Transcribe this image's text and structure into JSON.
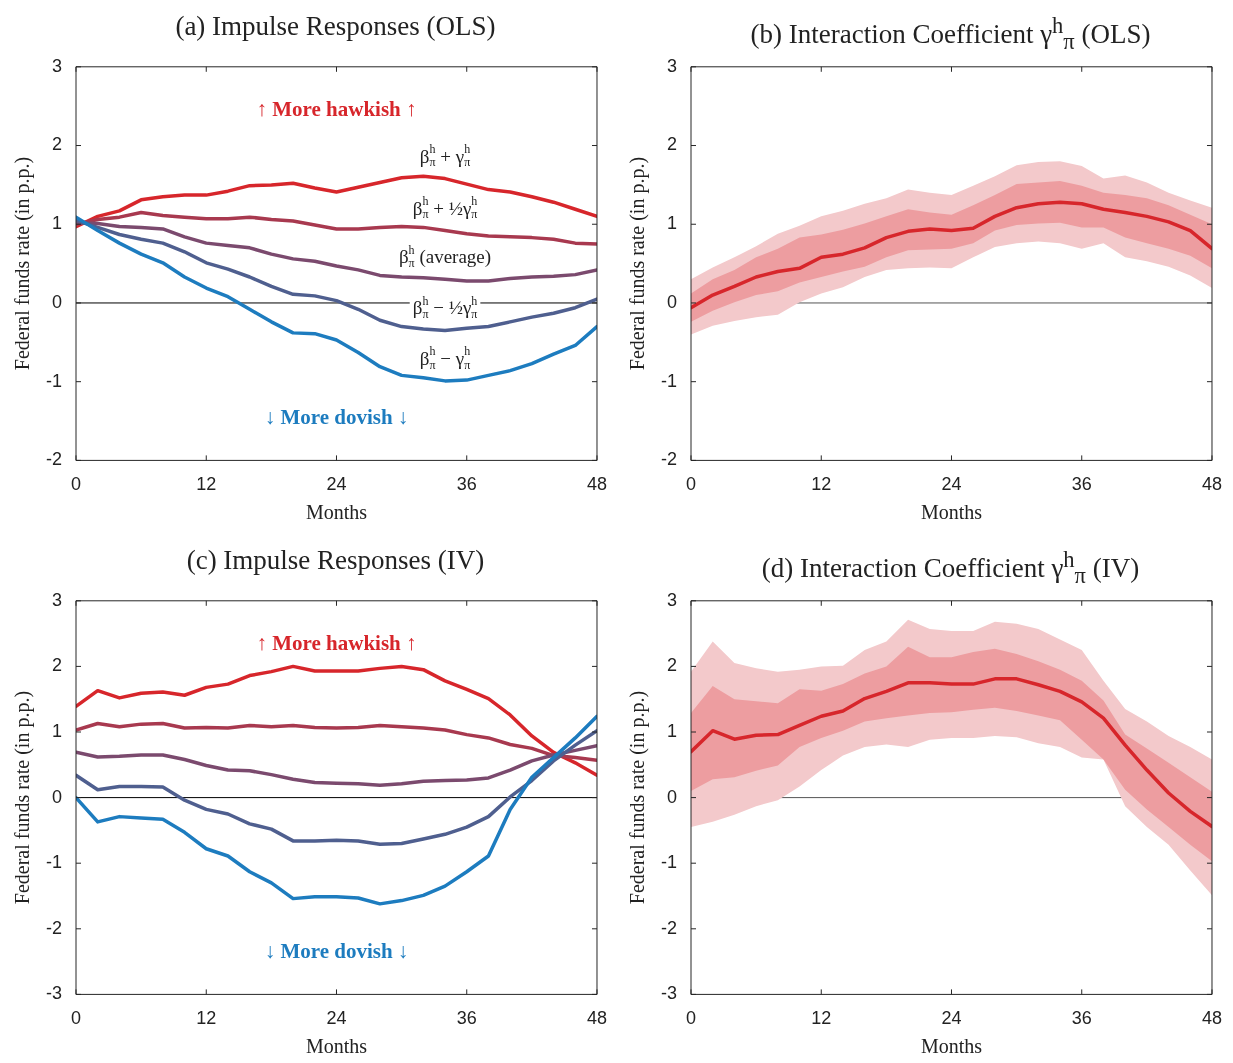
{
  "chart_data": [
    {
      "type": "line",
      "title": "(a) Impulse Responses (OLS)",
      "xlabel": "Months",
      "ylabel": "Federal funds rate (in p.p.)",
      "xlim": [
        0,
        48
      ],
      "xticks": [
        0,
        12,
        24,
        36,
        48
      ],
      "ylim": [
        -2,
        3
      ],
      "yticks": [
        -2,
        -1,
        0,
        1,
        2,
        3
      ],
      "ref_lines": [
        {
          "axis": "y",
          "value": 0,
          "color": "#000000"
        }
      ],
      "annotations": [
        "↑ More hawkish ↑",
        "↓ More dovish ↓"
      ],
      "series": [
        {
          "name": "β$^{h}$$_{π}$ + γ$^{h}$$_{π}$",
          "color": "#d7262b",
          "x": [
            0,
            2,
            4,
            6,
            8,
            10,
            12,
            14,
            16,
            18,
            20,
            22,
            24,
            26,
            28,
            30,
            32,
            34,
            36,
            38,
            40,
            42,
            44,
            46,
            48
          ],
          "values": [
            0.97,
            1.1,
            1.17,
            1.31,
            1.35,
            1.37,
            1.37,
            1.42,
            1.49,
            1.5,
            1.52,
            1.46,
            1.41,
            1.47,
            1.53,
            1.59,
            1.61,
            1.58,
            1.51,
            1.44,
            1.41,
            1.35,
            1.28,
            1.19,
            1.1
          ]
        },
        {
          "name": "β$^{h}$$_{π}$ + ½γ$^{h}$$_{π}$",
          "color": "#a8394f",
          "x": [
            0,
            2,
            4,
            6,
            8,
            10,
            12,
            14,
            16,
            18,
            20,
            22,
            24,
            26,
            28,
            30,
            32,
            34,
            36,
            38,
            40,
            42,
            44,
            46,
            48
          ],
          "values": [
            1.0,
            1.06,
            1.09,
            1.15,
            1.11,
            1.09,
            1.07,
            1.07,
            1.09,
            1.06,
            1.04,
            0.99,
            0.94,
            0.94,
            0.96,
            0.97,
            0.96,
            0.92,
            0.88,
            0.85,
            0.84,
            0.83,
            0.81,
            0.76,
            0.75
          ]
        },
        {
          "name": "β$^{h}$$_{π}$ (average)",
          "color": "#7b4a6e",
          "x": [
            0,
            2,
            4,
            6,
            8,
            10,
            12,
            14,
            16,
            18,
            20,
            22,
            24,
            26,
            28,
            30,
            32,
            34,
            36,
            38,
            40,
            42,
            44,
            46,
            48
          ],
          "values": [
            1.02,
            1.01,
            0.97,
            0.96,
            0.94,
            0.84,
            0.76,
            0.73,
            0.7,
            0.62,
            0.56,
            0.53,
            0.47,
            0.42,
            0.35,
            0.33,
            0.32,
            0.3,
            0.28,
            0.28,
            0.31,
            0.33,
            0.34,
            0.36,
            0.42
          ]
        },
        {
          "name": "β$^{h}$$_{π}$ − ½γ$^{h}$$_{π}$",
          "color": "#4f5f8f",
          "x": [
            0,
            2,
            4,
            6,
            8,
            10,
            12,
            14,
            16,
            18,
            20,
            22,
            24,
            26,
            28,
            30,
            32,
            34,
            36,
            38,
            40,
            42,
            44,
            46,
            48
          ],
          "values": [
            1.05,
            0.96,
            0.87,
            0.81,
            0.76,
            0.65,
            0.51,
            0.43,
            0.33,
            0.21,
            0.11,
            0.09,
            0.03,
            -0.08,
            -0.22,
            -0.3,
            -0.33,
            -0.35,
            -0.32,
            -0.3,
            -0.24,
            -0.18,
            -0.13,
            -0.06,
            0.05
          ]
        },
        {
          "name": "β$^{h}$$_{π}$ − γ$^{h}$$_{π}$",
          "color": "#1d7cbf",
          "x": [
            0,
            2,
            4,
            6,
            8,
            10,
            12,
            14,
            16,
            18,
            20,
            22,
            24,
            26,
            28,
            30,
            32,
            34,
            36,
            38,
            40,
            42,
            44,
            46,
            48
          ],
          "values": [
            1.09,
            0.92,
            0.76,
            0.62,
            0.51,
            0.33,
            0.19,
            0.08,
            -0.08,
            -0.24,
            -0.38,
            -0.39,
            -0.47,
            -0.63,
            -0.81,
            -0.92,
            -0.95,
            -0.99,
            -0.98,
            -0.92,
            -0.86,
            -0.77,
            -0.65,
            -0.54,
            -0.3
          ]
        }
      ]
    },
    {
      "type": "line",
      "title": "(b) Interaction Coefficient γ$^{h}$$_{π}$ (OLS)",
      "xlabel": "Months",
      "ylabel": "Federal funds rate (in p.p.)",
      "xlim": [
        0,
        48
      ],
      "xticks": [
        0,
        12,
        24,
        36,
        48
      ],
      "ylim": [
        -2,
        3
      ],
      "yticks": [
        -2,
        -1,
        0,
        1,
        2,
        3
      ],
      "ref_lines": [
        {
          "axis": "y",
          "value": 0,
          "color": "#555555"
        }
      ],
      "series": [
        {
          "color": "#f3c9cb",
          "x": [
            0,
            2,
            4,
            6,
            8,
            10,
            12,
            14,
            16,
            18,
            20,
            22,
            24,
            26,
            28,
            30,
            32,
            34,
            36,
            38,
            40,
            42,
            44,
            46,
            48
          ],
          "values": [
            null,
            null,
            null,
            null,
            null,
            null,
            null,
            null,
            null,
            null,
            null,
            null,
            null,
            null,
            null,
            null,
            null,
            null,
            null,
            null,
            null,
            null,
            null,
            null,
            null
          ],
          "lower": [
            -0.4,
            -0.29,
            -0.23,
            -0.18,
            -0.15,
            0.01,
            0.12,
            0.2,
            0.33,
            0.42,
            0.44,
            0.45,
            0.44,
            0.58,
            0.71,
            0.76,
            0.78,
            0.76,
            0.69,
            0.76,
            0.58,
            0.53,
            0.46,
            0.35,
            0.19
          ],
          "upper": [
            0.3,
            0.45,
            0.58,
            0.72,
            0.88,
            0.98,
            1.1,
            1.17,
            1.26,
            1.33,
            1.44,
            1.4,
            1.37,
            1.49,
            1.61,
            1.75,
            1.79,
            1.8,
            1.74,
            1.58,
            1.62,
            1.53,
            1.4,
            1.3,
            1.21
          ]
        },
        {
          "color": "#d7262b",
          "x": [
            0,
            2,
            4,
            6,
            8,
            10,
            12,
            14,
            16,
            18,
            20,
            22,
            24,
            26,
            28,
            30,
            32,
            34,
            36,
            38,
            40,
            42,
            44,
            46,
            48
          ],
          "values": [
            -0.06,
            0.1,
            0.21,
            0.33,
            0.4,
            0.44,
            0.58,
            0.62,
            0.7,
            0.83,
            0.91,
            0.94,
            0.92,
            0.95,
            1.1,
            1.21,
            1.26,
            1.28,
            1.26,
            1.19,
            1.15,
            1.1,
            1.03,
            0.92,
            0.69
          ],
          "lower": [
            -0.24,
            -0.1,
            0.01,
            0.1,
            0.15,
            0.26,
            0.33,
            0.4,
            0.46,
            0.58,
            0.67,
            0.68,
            0.69,
            0.76,
            0.92,
            0.99,
            1.01,
            1.02,
            0.96,
            0.96,
            0.83,
            0.76,
            0.69,
            0.6,
            0.44
          ],
          "upper": [
            0.12,
            0.3,
            0.42,
            0.58,
            0.69,
            0.83,
            0.87,
            0.93,
            1.01,
            1.1,
            1.19,
            1.15,
            1.12,
            1.24,
            1.37,
            1.51,
            1.53,
            1.55,
            1.49,
            1.4,
            1.37,
            1.33,
            1.24,
            1.12,
            1.0
          ]
        }
      ]
    },
    {
      "type": "line",
      "title": "(c) Impulse Responses (IV)",
      "xlabel": "Months",
      "ylabel": "Federal funds rate (in p.p.)",
      "xlim": [
        0,
        48
      ],
      "xticks": [
        0,
        12,
        24,
        36,
        48
      ],
      "ylim": [
        -3,
        3
      ],
      "yticks": [
        -3,
        -2,
        -1,
        0,
        1,
        2,
        3
      ],
      "ref_lines": [
        {
          "axis": "y",
          "value": 0,
          "color": "#000000"
        }
      ],
      "annotations": [
        "↑ More hawkish ↑",
        "↓ More dovish ↓"
      ],
      "series": [
        {
          "color": "#d7262b",
          "x": [
            0,
            2,
            4,
            6,
            8,
            10,
            12,
            14,
            16,
            18,
            20,
            22,
            24,
            26,
            28,
            30,
            32,
            34,
            36,
            38,
            40,
            42,
            44,
            46,
            48
          ],
          "values": [
            1.39,
            1.63,
            1.52,
            1.59,
            1.61,
            1.56,
            1.68,
            1.73,
            1.86,
            1.92,
            2.0,
            1.93,
            1.93,
            1.93,
            1.97,
            2.0,
            1.95,
            1.78,
            1.65,
            1.51,
            1.26,
            0.94,
            0.69,
            0.53,
            0.34
          ]
        },
        {
          "color": "#a8394f",
          "x": [
            0,
            2,
            4,
            6,
            8,
            10,
            12,
            14,
            16,
            18,
            20,
            22,
            24,
            26,
            28,
            30,
            32,
            34,
            36,
            38,
            40,
            42,
            44,
            46,
            48
          ],
          "values": [
            1.03,
            1.13,
            1.08,
            1.12,
            1.13,
            1.06,
            1.07,
            1.06,
            1.1,
            1.08,
            1.1,
            1.07,
            1.06,
            1.07,
            1.1,
            1.08,
            1.06,
            1.03,
            0.96,
            0.91,
            0.81,
            0.75,
            0.64,
            0.61,
            0.57
          ]
        },
        {
          "color": "#7b4a6e",
          "x": [
            0,
            2,
            4,
            6,
            8,
            10,
            12,
            14,
            16,
            18,
            20,
            22,
            24,
            26,
            28,
            30,
            32,
            34,
            36,
            38,
            40,
            42,
            44,
            46,
            48
          ],
          "values": [
            0.69,
            0.62,
            0.63,
            0.65,
            0.65,
            0.58,
            0.49,
            0.42,
            0.41,
            0.35,
            0.28,
            0.23,
            0.22,
            0.21,
            0.19,
            0.21,
            0.25,
            0.26,
            0.27,
            0.3,
            0.42,
            0.56,
            0.65,
            0.72,
            0.79
          ]
        },
        {
          "color": "#4f5f8f",
          "x": [
            0,
            2,
            4,
            6,
            8,
            10,
            12,
            14,
            16,
            18,
            20,
            22,
            24,
            26,
            28,
            30,
            32,
            34,
            36,
            38,
            40,
            42,
            44,
            46,
            48
          ],
          "values": [
            0.34,
            0.12,
            0.17,
            0.17,
            0.16,
            -0.04,
            -0.18,
            -0.25,
            -0.4,
            -0.48,
            -0.66,
            -0.66,
            -0.65,
            -0.66,
            -0.71,
            -0.7,
            -0.63,
            -0.56,
            -0.45,
            -0.29,
            0.01,
            0.26,
            0.56,
            0.8,
            1.02
          ]
        },
        {
          "color": "#1d7cbf",
          "x": [
            0,
            2,
            4,
            6,
            8,
            10,
            12,
            14,
            16,
            18,
            20,
            22,
            24,
            26,
            28,
            30,
            32,
            34,
            36,
            38,
            40,
            42,
            44,
            46,
            48
          ],
          "values": [
            0,
            -0.37,
            -0.29,
            -0.31,
            -0.33,
            -0.53,
            -0.78,
            -0.89,
            -1.13,
            -1.3,
            -1.54,
            -1.51,
            -1.51,
            -1.53,
            -1.62,
            -1.57,
            -1.49,
            -1.35,
            -1.13,
            -0.89,
            -0.18,
            0.31,
            0.61,
            0.91,
            1.24
          ]
        }
      ]
    },
    {
      "type": "line",
      "title": "(d) Interaction Coefficient γ$^{h}$$_{π}$ (IV)",
      "xlabel": "Months",
      "ylabel": "Federal funds rate (in p.p.)",
      "xlim": [
        0,
        48
      ],
      "xticks": [
        0,
        12,
        24,
        36,
        48
      ],
      "ylim": [
        -3,
        3
      ],
      "yticks": [
        -3,
        -2,
        -1,
        0,
        1,
        2,
        3
      ],
      "ref_lines": [
        {
          "axis": "y",
          "value": 0,
          "color": "#555555"
        }
      ],
      "series": [
        {
          "color": "#f3c9cb",
          "x": [
            0,
            2,
            4,
            6,
            8,
            10,
            12,
            14,
            16,
            18,
            20,
            22,
            24,
            26,
            28,
            30,
            32,
            34,
            36,
            38,
            40,
            42,
            44,
            46,
            48
          ],
          "values": [
            null,
            null,
            null,
            null,
            null,
            null,
            null,
            null,
            null,
            null,
            null,
            null,
            null,
            null,
            null,
            null,
            null,
            null,
            null,
            null,
            null,
            null,
            null,
            null,
            null
          ],
          "lower": [
            -0.45,
            -0.37,
            -0.26,
            -0.13,
            -0.04,
            0.17,
            0.42,
            0.64,
            0.77,
            0.81,
            0.77,
            0.88,
            0.91,
            0.91,
            0.94,
            0.92,
            0.83,
            0.77,
            0.61,
            0.58,
            -0.13,
            -0.45,
            -0.72,
            -1.11,
            -1.49
          ],
          "upper": [
            1.92,
            2.38,
            2.05,
            1.97,
            1.92,
            1.95,
            2.0,
            2.01,
            2.25,
            2.38,
            2.71,
            2.57,
            2.54,
            2.54,
            2.68,
            2.65,
            2.57,
            2.41,
            2.25,
            1.78,
            1.35,
            1.16,
            0.94,
            0.77,
            0.58
          ]
        },
        {
          "color": "#d7262b",
          "x": [
            0,
            2,
            4,
            6,
            8,
            10,
            12,
            14,
            16,
            18,
            20,
            22,
            24,
            26,
            28,
            30,
            32,
            34,
            36,
            38,
            40,
            42,
            44,
            46,
            48
          ],
          "values": [
            0.7,
            1.02,
            0.89,
            0.95,
            0.96,
            1.1,
            1.24,
            1.32,
            1.51,
            1.62,
            1.75,
            1.75,
            1.73,
            1.73,
            1.81,
            1.81,
            1.72,
            1.62,
            1.46,
            1.21,
            0.8,
            0.42,
            0.07,
            -0.21,
            -0.44
          ],
          "lower": [
            0.1,
            0.28,
            0.31,
            0.41,
            0.49,
            0.77,
            0.91,
            1.02,
            1.16,
            1.21,
            1.25,
            1.29,
            1.3,
            1.34,
            1.37,
            1.32,
            1.25,
            1.18,
            0.88,
            0.58,
            0.12,
            -0.18,
            -0.45,
            -0.72,
            -0.97
          ],
          "upper": [
            1.29,
            1.7,
            1.5,
            1.47,
            1.44,
            1.65,
            1.63,
            1.73,
            1.89,
            2.0,
            2.3,
            2.14,
            2.14,
            2.22,
            2.27,
            2.19,
            2.08,
            1.95,
            1.78,
            1.48,
            0.96,
            0.75,
            0.53,
            0.31,
            0.09
          ]
        }
      ]
    }
  ]
}
